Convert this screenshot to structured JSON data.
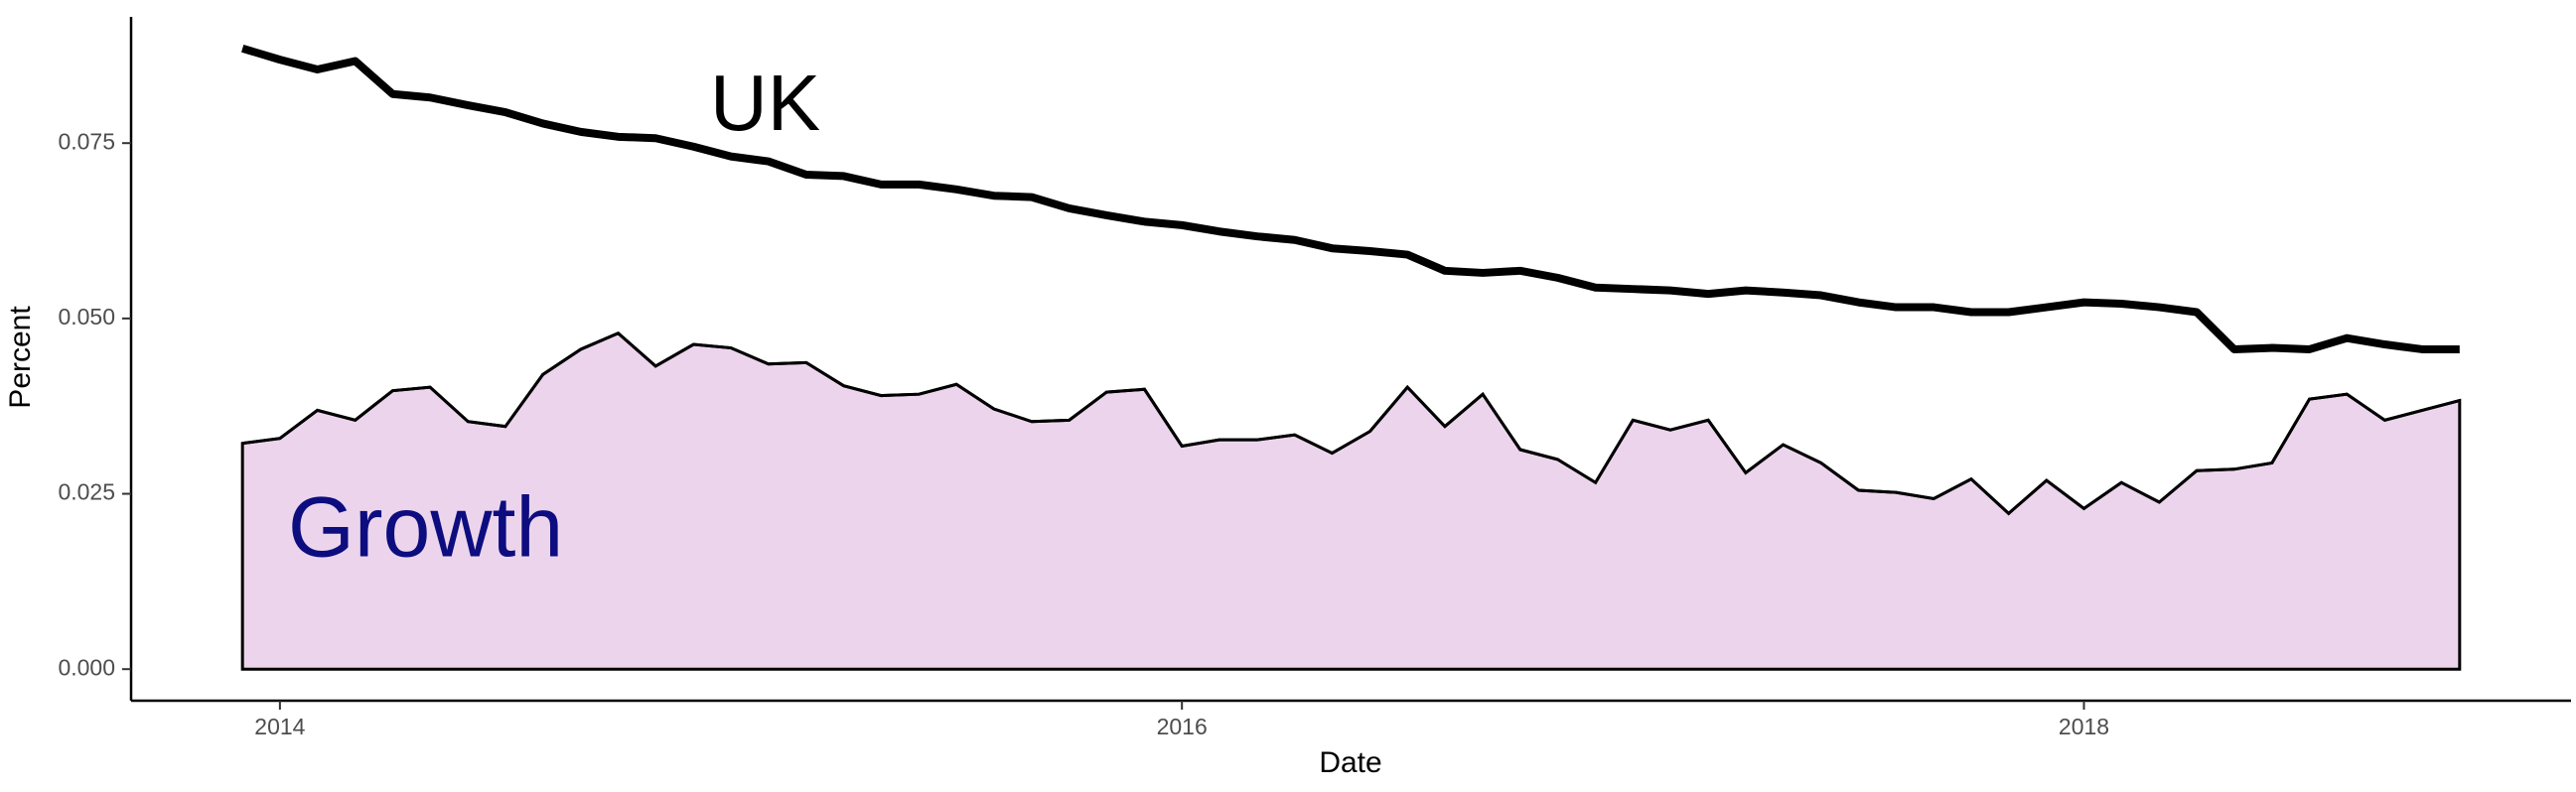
{
  "chart_data": {
    "type": "line",
    "xlabel": "Date",
    "ylabel": "Percent",
    "x": [
      2013.917,
      2014.0,
      2014.083,
      2014.167,
      2014.25,
      2014.333,
      2014.417,
      2014.5,
      2014.583,
      2014.667,
      2014.75,
      2014.833,
      2014.917,
      2015.0,
      2015.083,
      2015.167,
      2015.25,
      2015.333,
      2015.417,
      2015.5,
      2015.583,
      2015.667,
      2015.75,
      2015.833,
      2015.917,
      2016.0,
      2016.083,
      2016.167,
      2016.25,
      2016.333,
      2016.417,
      2016.5,
      2016.583,
      2016.667,
      2016.75,
      2016.833,
      2016.917,
      2017.0,
      2017.083,
      2017.167,
      2017.25,
      2017.333,
      2017.417,
      2017.5,
      2017.583,
      2017.667,
      2017.75,
      2017.833,
      2017.917,
      2018.0,
      2018.083,
      2018.167,
      2018.25,
      2018.333,
      2018.417,
      2018.5,
      2018.583,
      2018.667,
      2018.75,
      2018.833
    ],
    "series": [
      {
        "name": "Growth",
        "type": "area",
        "color": "#ecd5ec",
        "label_color": "#0d0d80",
        "values": [
          0.0322,
          0.0329,
          0.0369,
          0.0355,
          0.0397,
          0.0402,
          0.0353,
          0.0346,
          0.042,
          0.0456,
          0.0479,
          0.0432,
          0.0463,
          0.0458,
          0.0435,
          0.0437,
          0.0404,
          0.039,
          0.0392,
          0.0406,
          0.0371,
          0.0353,
          0.0355,
          0.0395,
          0.0399,
          0.0318,
          0.0327,
          0.0327,
          0.0334,
          0.0308,
          0.0339,
          0.0402,
          0.0346,
          0.0392,
          0.0313,
          0.0299,
          0.0266,
          0.0355,
          0.0341,
          0.0355,
          0.028,
          0.032,
          0.0294,
          0.0255,
          0.0252,
          0.0243,
          0.0271,
          0.0222,
          0.0269,
          0.0229,
          0.0266,
          0.0238,
          0.0283,
          0.0285,
          0.0294,
          0.0385,
          0.0392,
          0.0355,
          0.0369,
          0.0383
        ]
      },
      {
        "name": "UK",
        "type": "line",
        "color": "#000000",
        "label_color": "#000000",
        "values": [
          0.0885,
          0.0869,
          0.0855,
          0.0867,
          0.082,
          0.0815,
          0.0804,
          0.0794,
          0.0778,
          0.0766,
          0.0759,
          0.0757,
          0.0745,
          0.0731,
          0.0724,
          0.0705,
          0.0703,
          0.0691,
          0.0691,
          0.0684,
          0.0675,
          0.0673,
          0.0657,
          0.0647,
          0.0638,
          0.0633,
          0.0624,
          0.0617,
          0.0612,
          0.06,
          0.0596,
          0.0591,
          0.0568,
          0.0565,
          0.0568,
          0.0558,
          0.0544,
          0.0542,
          0.054,
          0.0535,
          0.054,
          0.0537,
          0.0533,
          0.0523,
          0.0516,
          0.0516,
          0.0509,
          0.0509,
          0.0516,
          0.0523,
          0.0521,
          0.0516,
          0.0509,
          0.0456,
          0.0458,
          0.0456,
          0.0472,
          0.0463,
          0.0456,
          0.0456
        ]
      }
    ],
    "xlim": [
      2013.67,
      2019.08
    ],
    "xticks": [
      2014,
      2016,
      2018
    ],
    "ylim": [
      -0.0045,
      0.093
    ],
    "yticks": [
      {
        "value": 0,
        "label": "0.000"
      },
      {
        "value": 0.025,
        "label": "0.025"
      },
      {
        "value": 0.05,
        "label": "0.050"
      },
      {
        "value": 0.075,
        "label": "0.075"
      }
    ],
    "grid": false
  }
}
